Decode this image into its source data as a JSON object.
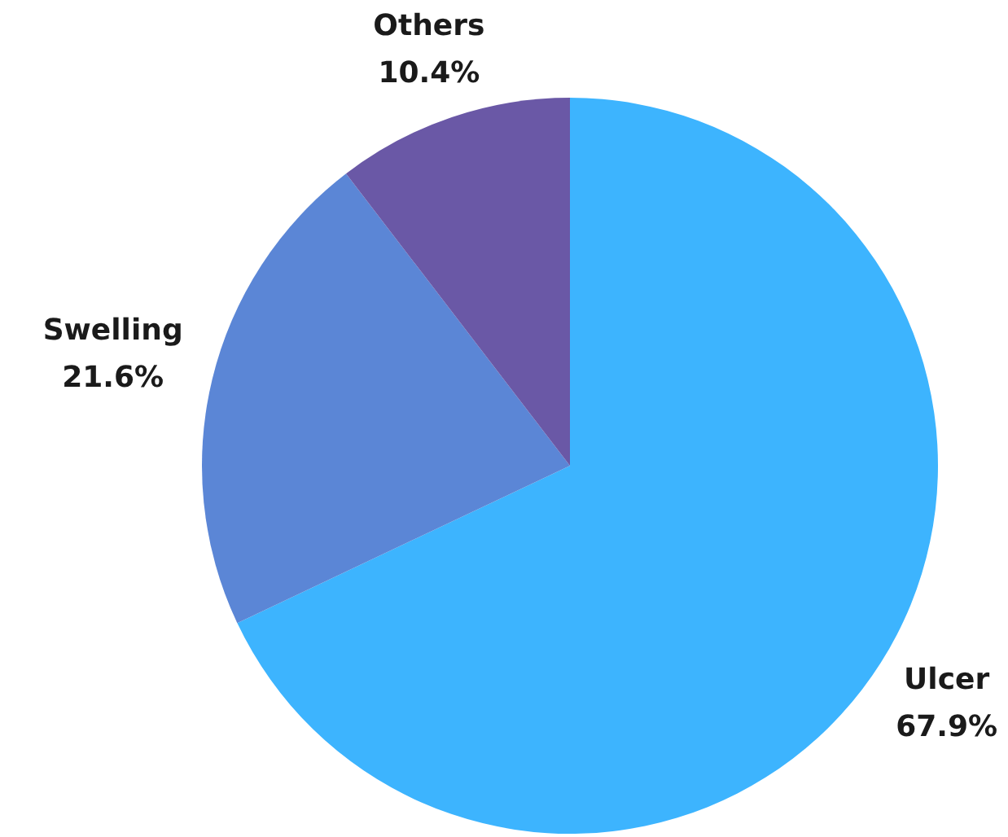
{
  "chart_data": {
    "type": "pie",
    "categories": [
      "Ulcer",
      "Swelling",
      "Others"
    ],
    "values": [
      67.9,
      21.6,
      10.4
    ],
    "colors": [
      "#3db4fe",
      "#5b86d6",
      "#6a58a6"
    ],
    "value_labels": [
      "67.9%",
      "21.6%",
      "10.4%"
    ]
  }
}
